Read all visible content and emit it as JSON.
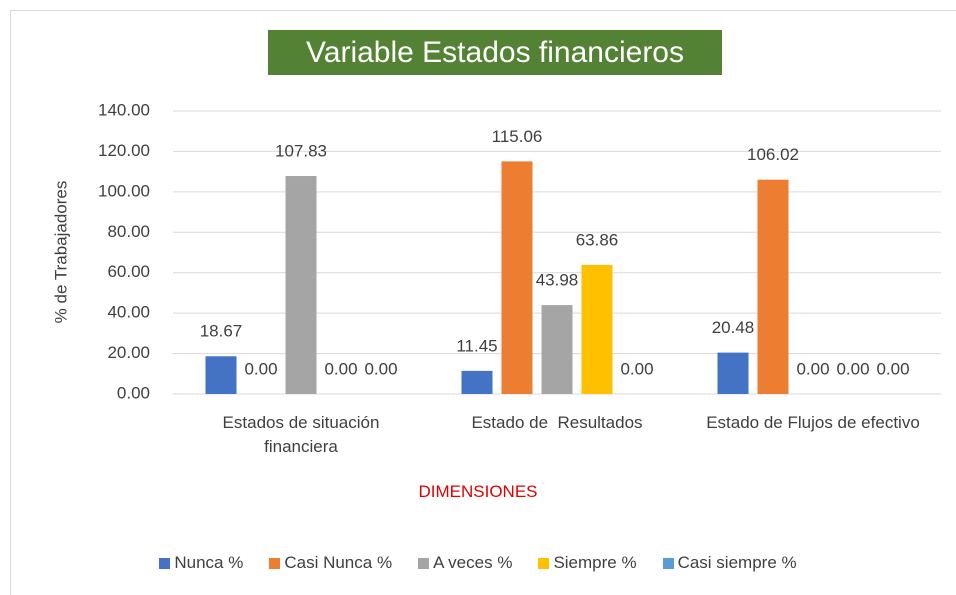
{
  "chart_data": {
    "type": "bar",
    "title": "Variable Estados financieros",
    "x_label": "DIMENSIONES",
    "y_label": "% de Trabajadores",
    "categories": [
      "Estados de situación financiera",
      "Estado de  Resultados",
      "Estado de Flujos de efectivo"
    ],
    "series": [
      {
        "name": "Nunca %",
        "color": "#4472c4",
        "values": [
          18.67,
          11.45,
          20.48
        ],
        "value_labels": [
          "18.67",
          "11.45",
          "20.48"
        ]
      },
      {
        "name": "Casi Nunca %",
        "color": "#ed7d31",
        "values": [
          0,
          115.06,
          106.02
        ],
        "value_labels": [
          "0.00",
          "115.06",
          "106.02"
        ]
      },
      {
        "name": "A veces %",
        "color": "#a5a5a5",
        "values": [
          107.83,
          43.98,
          0
        ],
        "value_labels": [
          "107.83",
          "43.98",
          "0.00"
        ]
      },
      {
        "name": "Siempre %",
        "color": "#ffc000",
        "values": [
          0,
          63.86,
          0
        ],
        "value_labels": [
          "0.00",
          "63.86",
          "0.00"
        ]
      },
      {
        "name": "Casi siempre %",
        "color": "#5b9bd5",
        "values": [
          0,
          0,
          0
        ],
        "value_labels": [
          "0.00",
          "0.00",
          "0.00"
        ]
      }
    ],
    "ylim": [
      0,
      140
    ],
    "yticks": [
      {
        "value": 0,
        "label": "0.00"
      },
      {
        "value": 20,
        "label": "20.00"
      },
      {
        "value": 40,
        "label": "40.00"
      },
      {
        "value": 60,
        "label": "60.00"
      },
      {
        "value": 80,
        "label": "80.00"
      },
      {
        "value": 100,
        "label": "100.00"
      },
      {
        "value": 120,
        "label": "120.00"
      },
      {
        "value": 140,
        "label": "140.00"
      }
    ],
    "grid": true,
    "legend": "bottom"
  }
}
